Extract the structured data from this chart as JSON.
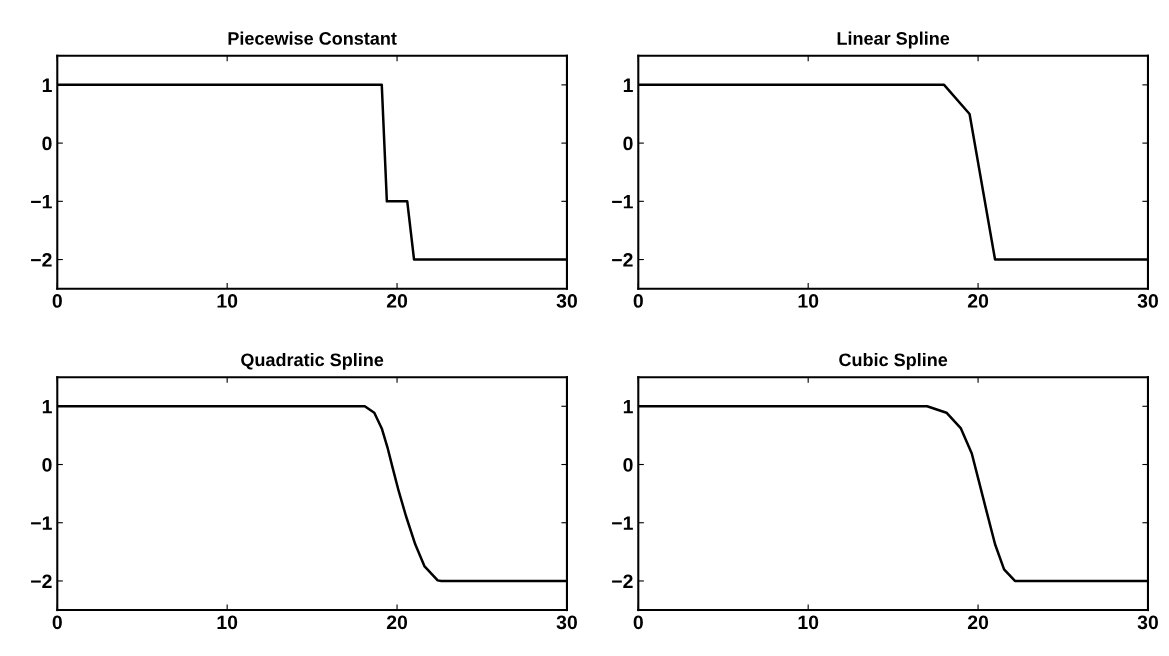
{
  "chart_data": [
    {
      "type": "line",
      "title": "Piecewise Constant",
      "xlim": [
        0,
        30
      ],
      "ylim": [
        -2.5,
        1.5
      ],
      "xticks": [
        0,
        10,
        20,
        30
      ],
      "yticks": [
        -2,
        -1,
        0,
        1
      ],
      "grid": false,
      "legend": false,
      "series": [
        {
          "color": "#000000",
          "x": [
            0,
            19.1,
            19.4,
            20.6,
            21.0,
            30
          ],
          "values": [
            1,
            1,
            -1,
            -1,
            -2,
            -2
          ]
        }
      ]
    },
    {
      "type": "line",
      "title": "Linear Spline",
      "xlim": [
        0,
        30
      ],
      "ylim": [
        -2.5,
        1.5
      ],
      "xticks": [
        0,
        10,
        20,
        30
      ],
      "yticks": [
        -2,
        -1,
        0,
        1
      ],
      "grid": false,
      "legend": false,
      "series": [
        {
          "color": "#000000",
          "x": [
            0,
            18.0,
            19.5,
            21.0,
            30
          ],
          "values": [
            1,
            1,
            0.5,
            -2,
            -2
          ]
        }
      ]
    },
    {
      "type": "line",
      "title": "Quadratic Spline",
      "xlim": [
        0,
        30
      ],
      "ylim": [
        -2.5,
        1.5
      ],
      "xticks": [
        0,
        10,
        20,
        30
      ],
      "yticks": [
        -2,
        -1,
        0,
        1
      ],
      "grid": false,
      "legend": false,
      "series": [
        {
          "color": "#000000",
          "x": [
            0,
            18.1,
            18.66,
            19.1,
            19.43,
            19.76,
            20.09,
            20.52,
            21.07,
            21.62,
            22.39,
            22.6,
            30
          ],
          "values": [
            1,
            1,
            0.89,
            0.62,
            0.3,
            -0.08,
            -0.45,
            -0.88,
            -1.37,
            -1.75,
            -1.99,
            -2,
            -2
          ]
        }
      ]
    },
    {
      "type": "line",
      "title": "Cubic Spline",
      "xlim": [
        0,
        30
      ],
      "ylim": [
        -2.5,
        1.5
      ],
      "xticks": [
        0,
        10,
        20,
        30
      ],
      "yticks": [
        -2,
        -1,
        0,
        1
      ],
      "grid": false,
      "legend": false,
      "series": [
        {
          "color": "#000000",
          "x": [
            0,
            17.0,
            18.14,
            18.99,
            19.63,
            20.05,
            20.47,
            21.0,
            21.53,
            22.17,
            30
          ],
          "values": [
            1,
            1,
            0.89,
            0.62,
            0.19,
            -0.29,
            -0.77,
            -1.37,
            -1.8,
            -2,
            -2
          ]
        }
      ]
    }
  ]
}
